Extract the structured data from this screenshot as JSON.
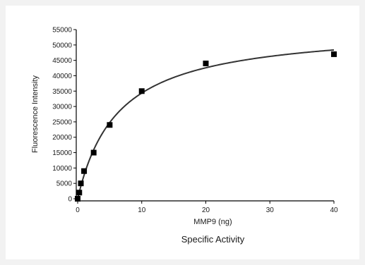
{
  "chart_data": {
    "type": "scatter",
    "title": "",
    "caption": "Specific Activity",
    "xlabel": "MMP9 (ng)",
    "ylabel": "Fluorescence Intensity",
    "xlim": [
      0,
      40
    ],
    "ylim": [
      0,
      55000
    ],
    "x_ticks": [
      0,
      10,
      20,
      30,
      40
    ],
    "x_tick_labels": [
      "0",
      "10",
      "20",
      "30",
      "40"
    ],
    "y_ticks": [
      0,
      5000,
      10000,
      15000,
      20000,
      25000,
      30000,
      35000,
      40000,
      45000,
      50000,
      55000
    ],
    "y_tick_labels": [
      "0",
      "5000",
      "10000",
      "15000",
      "20000",
      "25000",
      "30000",
      "35000",
      "40000",
      "45000",
      "50000",
      "55000"
    ],
    "grid": false,
    "series": [
      {
        "kind": "points",
        "marker": "square",
        "color": "#000000",
        "x": [
          0,
          0.25,
          0.5,
          1,
          2.5,
          5,
          10,
          20,
          40
        ],
        "y": [
          0,
          2000,
          5000,
          9000,
          15000,
          24000,
          35000,
          44000,
          47000
        ]
      },
      {
        "kind": "fit",
        "model": "hyperbolic",
        "color": "#333333",
        "vmax": 56000,
        "km": 6.3
      }
    ]
  }
}
